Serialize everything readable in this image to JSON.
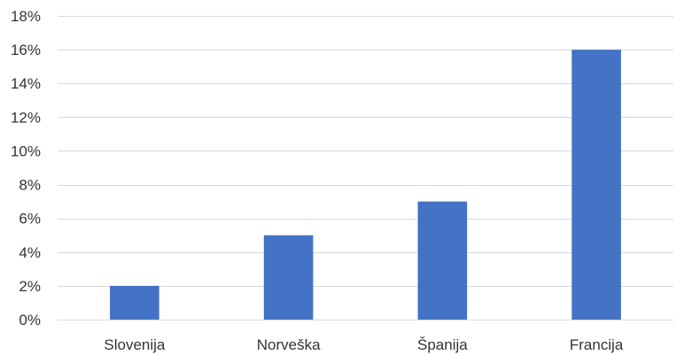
{
  "chart_data": {
    "type": "bar",
    "categories": [
      "Slovenija",
      "Norveška",
      "Španija",
      "Francija"
    ],
    "values": [
      2,
      5,
      7,
      16
    ],
    "ylim": [
      0,
      18
    ],
    "y_ticks": [
      0,
      2,
      4,
      6,
      8,
      10,
      12,
      14,
      16,
      18
    ],
    "y_tick_format": "percent",
    "grid": true,
    "legend": "none",
    "title": "",
    "xlabel": "",
    "ylabel": "",
    "bar_color": "#4472c4"
  }
}
